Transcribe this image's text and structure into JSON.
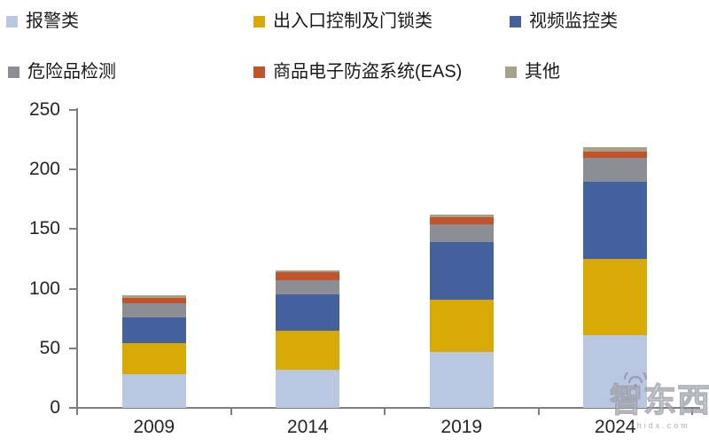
{
  "chart_data": {
    "type": "bar",
    "stacked": true,
    "title": "",
    "xlabel": "",
    "ylabel": "",
    "categories": [
      "2009",
      "2014",
      "2019",
      "2024"
    ],
    "series": [
      {
        "name": "报警类",
        "color": "#bac7e2",
        "values": [
          28,
          32,
          47,
          61
        ]
      },
      {
        "name": "出入口控制及门锁类",
        "color": "#d9aa05",
        "values": [
          26,
          33,
          44,
          64
        ]
      },
      {
        "name": "视频监控类",
        "color": "#44619e",
        "values": [
          22,
          30,
          48,
          65
        ]
      },
      {
        "name": "危险品检测",
        "color": "#8d8d96",
        "values": [
          12,
          12,
          15,
          20
        ]
      },
      {
        "name": "商品电子防盗系统(EAS)",
        "color": "#c2532a",
        "values": [
          4.5,
          7,
          6,
          5
        ]
      },
      {
        "name": "其他",
        "color": "#a5a287",
        "values": [
          2,
          1,
          2,
          4
        ]
      }
    ],
    "ylim": [
      0,
      250
    ],
    "yticks": [
      0,
      50,
      100,
      150,
      200,
      250
    ],
    "grid": false,
    "legend_position": "top",
    "axis_color": "#7f7f7f"
  },
  "watermark": {
    "brand": "智东西",
    "domain": "zhidx.com"
  }
}
